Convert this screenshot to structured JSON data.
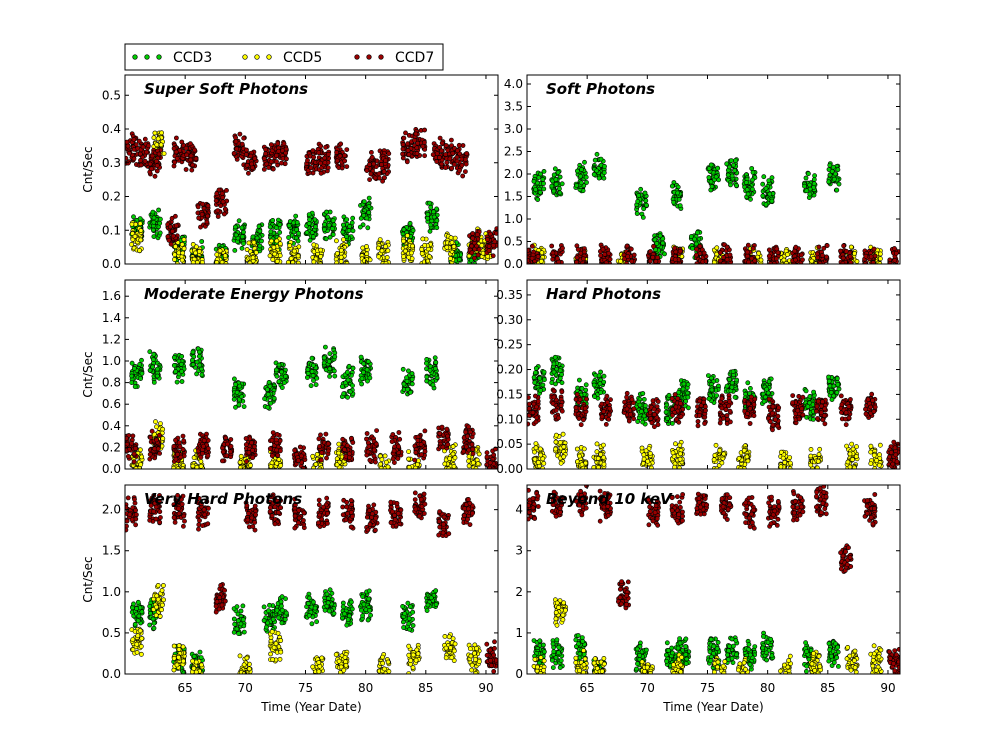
{
  "chart_data": {
    "type": "scatter",
    "legend": {
      "placement": "top-left, above panels",
      "entries": [
        {
          "name": "CCD3",
          "color": "#00cc00"
        },
        {
          "name": "CCD5",
          "color": "#ffff00"
        },
        {
          "name": "CCD7",
          "color": "#990000"
        }
      ]
    },
    "xlabel": "Time (Year Date)",
    "ylabel": "Cnt/Sec",
    "xlim": [
      60,
      91
    ],
    "xticks": [
      "65",
      "70",
      "75",
      "80",
      "85",
      "90"
    ],
    "grid": false,
    "panels": [
      {
        "title": "Super Soft Photons",
        "ylim": [
          0,
          0.56
        ],
        "yticks": [
          "0.0",
          "0.1",
          "0.2",
          "0.3",
          "0.4",
          "0.5"
        ],
        "series": [
          {
            "name": "CCD3",
            "x": [
              61,
              62.5,
              64.5,
              66,
              68,
              69.5,
              71,
              72.5,
              74,
              75.5,
              77,
              78.5,
              80,
              83.5,
              85.5,
              87.5,
              89
            ],
            "y": [
              0.11,
              0.12,
              0.05,
              0.02,
              0.02,
              0.08,
              0.08,
              0.09,
              0.1,
              0.11,
              0.12,
              0.1,
              0.15,
              0.09,
              0.14,
              0.02,
              0.03
            ]
          },
          {
            "name": "CCD5",
            "x": [
              61,
              62.8,
              64.5,
              66,
              68,
              70.5,
              72.5,
              74,
              76,
              78,
              80,
              81.5,
              83.5,
              85,
              87,
              89,
              90
            ],
            "y": [
              0.08,
              0.35,
              0.03,
              0.01,
              0.01,
              0.02,
              0.03,
              0.02,
              0.02,
              0.03,
              0.01,
              0.03,
              0.04,
              0.03,
              0.05,
              0.06,
              0.05
            ]
          },
          {
            "name": "CCD7",
            "x": [
              60.5,
              61.5,
              62.5,
              64,
              64.5,
              65.5,
              66.5,
              68,
              69.5,
              70.5,
              72,
              73,
              75.5,
              76.5,
              78,
              80.5,
              81.5,
              83.5,
              84.5,
              86,
              87,
              88,
              89,
              90.5
            ],
            "y": [
              0.34,
              0.33,
              0.3,
              0.1,
              0.33,
              0.32,
              0.15,
              0.18,
              0.34,
              0.3,
              0.32,
              0.33,
              0.3,
              0.31,
              0.32,
              0.29,
              0.29,
              0.34,
              0.36,
              0.33,
              0.32,
              0.31,
              0.06,
              0.07
            ]
          }
        ]
      },
      {
        "title": "Soft Photons",
        "ylim": [
          0,
          4.2
        ],
        "yticks": [
          "0.0",
          "0.5",
          "1.0",
          "1.5",
          "2.0",
          "2.5",
          "3.0",
          "3.5",
          "4.0"
        ],
        "series": [
          {
            "name": "CCD3",
            "x": [
              61,
              62.5,
              64.5,
              66,
              69.5,
              71,
              72.5,
              74,
              75.5,
              77,
              78.5,
              80,
              83.5,
              85.5
            ],
            "y": [
              1.75,
              1.8,
              1.9,
              2.1,
              1.4,
              0.4,
              1.5,
              0.4,
              1.9,
              2.0,
              1.8,
              1.6,
              1.7,
              1.95
            ]
          },
          {
            "name": "CCD5",
            "x": [
              61,
              64.5,
              68,
              72.5,
              76,
              79,
              81.5,
              84,
              87,
              89
            ],
            "y": [
              0.05,
              0.05,
              0.05,
              0.05,
              0.04,
              0.04,
              0.05,
              0.05,
              0.06,
              0.06
            ]
          },
          {
            "name": "CCD7",
            "x": [
              60.5,
              62.5,
              64.5,
              66.5,
              68.5,
              70.5,
              72.5,
              74.5,
              76.5,
              78.5,
              80.5,
              82.5,
              84.5,
              86.5,
              88.5,
              90.5
            ],
            "y": [
              0.1,
              0.1,
              0.1,
              0.1,
              0.1,
              0.1,
              0.1,
              0.1,
              0.1,
              0.1,
              0.1,
              0.1,
              0.1,
              0.1,
              0.1,
              0.05
            ]
          }
        ]
      },
      {
        "title": "Moderate Energy Photons",
        "ylim": [
          0,
          1.75
        ],
        "yticks": [
          "0.0",
          "0.2",
          "0.4",
          "0.6",
          "0.8",
          "1.0",
          "1.2",
          "1.4",
          "1.6"
        ],
        "series": [
          {
            "name": "CCD3",
            "x": [
              61,
              62.5,
              64.5,
              66,
              69.5,
              72,
              73,
              75.5,
              77,
              78.5,
              80,
              83.5,
              85.5
            ],
            "y": [
              0.9,
              0.95,
              0.95,
              1.0,
              0.7,
              0.7,
              0.9,
              0.9,
              1.0,
              0.8,
              0.9,
              0.8,
              0.9
            ]
          },
          {
            "name": "CCD5",
            "x": [
              61,
              62.8,
              64.5,
              66,
              70,
              72.5,
              76,
              78,
              81.5,
              84,
              87,
              89
            ],
            "y": [
              0.05,
              0.3,
              0.05,
              0.03,
              0.03,
              0.05,
              0.03,
              0.1,
              0.02,
              0.02,
              0.1,
              0.05
            ]
          },
          {
            "name": "CCD7",
            "x": [
              60.5,
              62.5,
              64.5,
              66.5,
              68.5,
              70.5,
              72.5,
              74.5,
              76.5,
              78.5,
              80.5,
              82.5,
              84.5,
              86.5,
              88.5,
              90.5
            ],
            "y": [
              0.2,
              0.2,
              0.2,
              0.2,
              0.2,
              0.2,
              0.2,
              0.1,
              0.2,
              0.2,
              0.2,
              0.2,
              0.2,
              0.28,
              0.28,
              0.05
            ]
          }
        ]
      },
      {
        "title": "Hard Photons",
        "ylim": [
          0,
          0.38
        ],
        "yticks": [
          "0.00",
          "0.05",
          "0.10",
          "0.15",
          "0.20",
          "0.25",
          "0.30",
          "0.35"
        ],
        "series": [
          {
            "name": "CCD3",
            "x": [
              61,
              62.5,
              64.5,
              66,
              69.5,
              72,
              73,
              75.5,
              77,
              78.5,
              80,
              83.5,
              85.5
            ],
            "y": [
              0.18,
              0.2,
              0.15,
              0.17,
              0.12,
              0.12,
              0.15,
              0.16,
              0.17,
              0.14,
              0.16,
              0.13,
              0.17
            ]
          },
          {
            "name": "CCD5",
            "x": [
              61,
              62.8,
              64.5,
              66,
              70,
              72.5,
              76,
              78,
              81.5,
              84,
              87,
              89
            ],
            "y": [
              0.02,
              0.04,
              0.02,
              0.02,
              0.02,
              0.02,
              0.02,
              0.02,
              0.01,
              0.01,
              0.02,
              0.02
            ]
          },
          {
            "name": "CCD7",
            "x": [
              60.5,
              62.5,
              64.5,
              66.5,
              68.5,
              70.5,
              72.5,
              74.5,
              76.5,
              78.5,
              80.5,
              82.5,
              84.5,
              86.5,
              88.5,
              90.5
            ],
            "y": [
              0.12,
              0.13,
              0.12,
              0.12,
              0.12,
              0.11,
              0.12,
              0.12,
              0.12,
              0.12,
              0.11,
              0.12,
              0.12,
              0.12,
              0.13,
              0.03
            ]
          }
        ]
      },
      {
        "title": "Very Hard Photons",
        "ylim": [
          0,
          2.3
        ],
        "yticks": [
          "0.0",
          "0.5",
          "1.0",
          "1.5",
          "2.0"
        ],
        "series": [
          {
            "name": "CCD3",
            "x": [
              61,
              62.5,
              64.5,
              66,
              69.5,
              72,
              73,
              75.5,
              77,
              78.5,
              80,
              83.5,
              85.5
            ],
            "y": [
              0.75,
              0.75,
              0.15,
              0.1,
              0.65,
              0.7,
              0.75,
              0.8,
              0.85,
              0.75,
              0.85,
              0.7,
              0.9
            ]
          },
          {
            "name": "CCD5",
            "x": [
              61,
              62.8,
              64.5,
              66,
              70,
              72.5,
              76,
              78,
              81.5,
              84,
              87,
              89
            ],
            "y": [
              0.4,
              0.9,
              0.2,
              0.05,
              0.05,
              0.35,
              0.05,
              0.15,
              0.05,
              0.2,
              0.3,
              0.2
            ]
          },
          {
            "name": "CCD7",
            "x": [
              60.5,
              62.5,
              64.5,
              66.5,
              68,
              70.5,
              72.5,
              74.5,
              76.5,
              78.5,
              80.5,
              82.5,
              84.5,
              86.5,
              88.5,
              90.5
            ],
            "y": [
              1.95,
              2.0,
              2.0,
              1.95,
              0.9,
              1.9,
              2.0,
              1.95,
              1.95,
              1.95,
              1.9,
              1.95,
              2.05,
              1.8,
              2.0,
              0.2
            ]
          }
        ]
      },
      {
        "title": "Beyond 10 keV",
        "ylim": [
          0,
          4.6
        ],
        "yticks": [
          "0",
          "1",
          "2",
          "3",
          "4"
        ],
        "series": [
          {
            "name": "CCD3",
            "x": [
              61,
              62.5,
              64.5,
              66,
              69.5,
              72,
              73,
              75.5,
              77,
              78.5,
              80,
              83.5,
              85.5
            ],
            "y": [
              0.5,
              0.5,
              0.6,
              0.05,
              0.4,
              0.45,
              0.5,
              0.5,
              0.6,
              0.5,
              0.6,
              0.4,
              0.5
            ]
          },
          {
            "name": "CCD5",
            "x": [
              61,
              62.8,
              64.5,
              66,
              70,
              72.5,
              76,
              78,
              81.5,
              84,
              87,
              89
            ],
            "y": [
              0.1,
              1.5,
              0.2,
              0.05,
              0.05,
              0.1,
              0.05,
              0.05,
              0.05,
              0.25,
              0.3,
              0.3
            ]
          },
          {
            "name": "CCD7",
            "x": [
              60.5,
              62.5,
              64.5,
              66.5,
              68,
              70.5,
              72.5,
              74.5,
              76.5,
              78.5,
              80.5,
              82.5,
              84.5,
              86.5,
              88.5,
              90.5
            ],
            "y": [
              4.1,
              4.1,
              4.2,
              4.1,
              1.9,
              3.9,
              4.0,
              4.1,
              4.1,
              3.9,
              4.0,
              4.1,
              4.2,
              2.8,
              4.0,
              0.3
            ]
          }
        ]
      }
    ]
  }
}
